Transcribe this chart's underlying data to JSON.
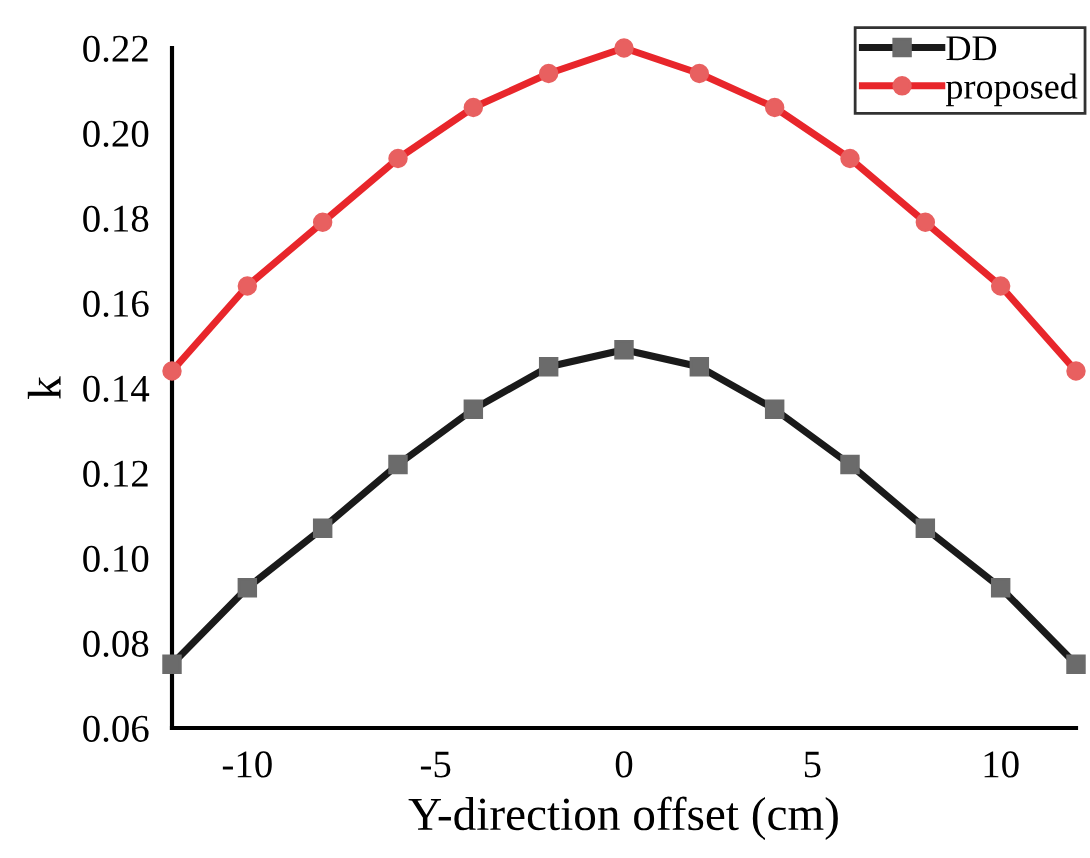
{
  "chart_data": {
    "type": "line",
    "xlabel": "Y-direction offset (cm)",
    "ylabel": "k",
    "x": [
      -12,
      -10,
      -8,
      -6,
      -4,
      -2,
      0,
      2,
      4,
      6,
      8,
      10,
      12
    ],
    "series": [
      {
        "name": "DD",
        "color": "#1a1a1a",
        "marker": "square",
        "values": [
          0.075,
          0.093,
          0.107,
          0.122,
          0.135,
          0.145,
          0.149,
          0.145,
          0.135,
          0.122,
          0.107,
          0.093,
          0.075
        ]
      },
      {
        "name": "proposed",
        "color": "#e8262b",
        "marker": "circle",
        "values": [
          0.144,
          0.164,
          0.179,
          0.194,
          0.206,
          0.214,
          0.22,
          0.214,
          0.206,
          0.194,
          0.179,
          0.164,
          0.144
        ]
      }
    ],
    "xlim": [
      -12,
      12
    ],
    "xticks": [
      -10,
      -5,
      0,
      5,
      10
    ],
    "ylim": [
      0.06,
      0.22
    ],
    "yticks": [
      0.06,
      0.08,
      {
        "value": 0.1,
        "label": "0.10"
      },
      0.12,
      0.14,
      0.16,
      0.18,
      {
        "value": 0.2,
        "label": "0.20"
      },
      0.22
    ],
    "grid": false,
    "legend": "top right"
  }
}
